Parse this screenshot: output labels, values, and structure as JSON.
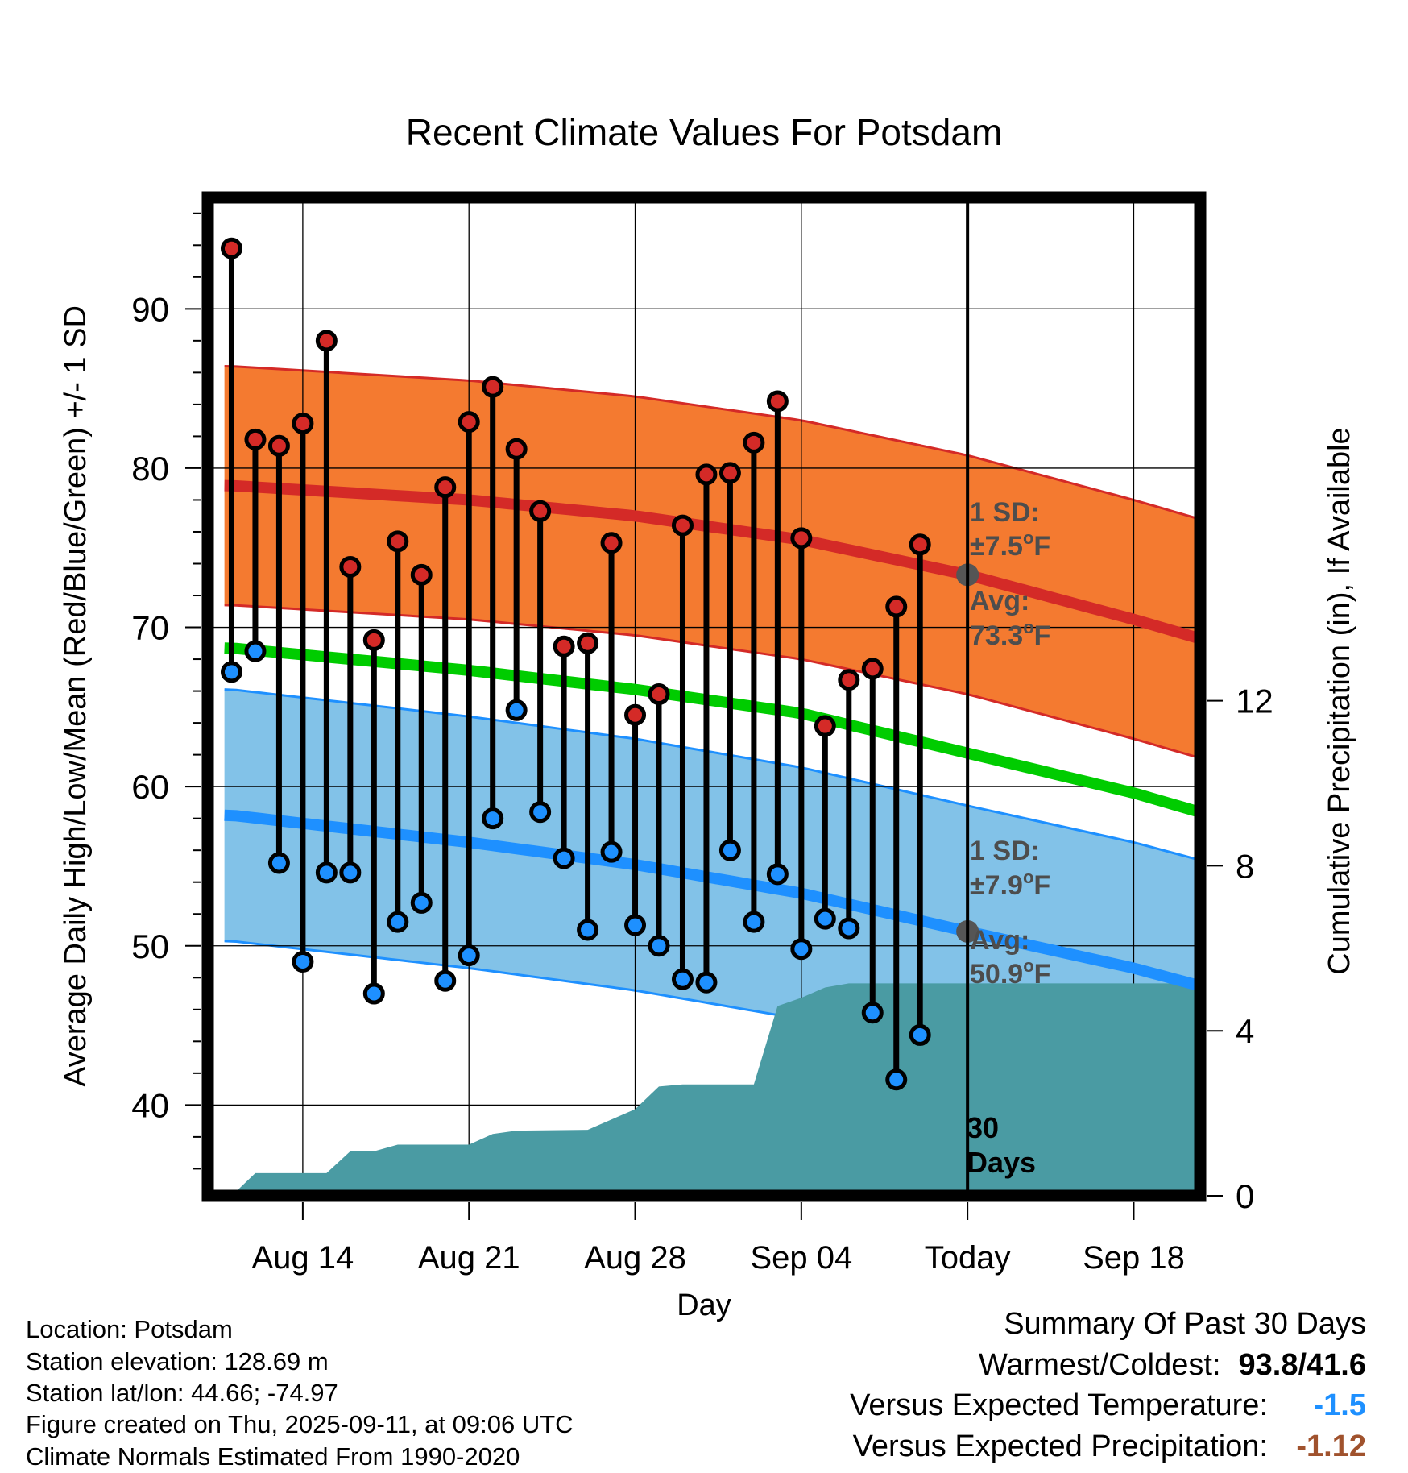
{
  "chart_data": {
    "type": "line",
    "title": "Recent Climate Values For Potsdam",
    "xlabel": "Day",
    "ylabel": "Average Daily High/Low/Mean (Red/Blue/Green) +/- 1 SD",
    "y2label": "Cumulative Precipitation (in), If Available",
    "x_tick_labels": [
      "Aug 14",
      "Aug 21",
      "Aug 28",
      "Sep 04",
      "Today",
      "Sep 18"
    ],
    "y_ticks": [
      40,
      50,
      60,
      70,
      80,
      90
    ],
    "y2_ticks": [
      0,
      4,
      8,
      12
    ],
    "ylim": [
      34.3,
      97
    ],
    "y2lim": [
      0,
      24.2
    ],
    "grid": true,
    "days": [
      "Aug 11",
      "Aug 12",
      "Aug 13",
      "Aug 14",
      "Aug 15",
      "Aug 16",
      "Aug 17",
      "Aug 18",
      "Aug 19",
      "Aug 20",
      "Aug 21",
      "Aug 22",
      "Aug 23",
      "Aug 24",
      "Aug 25",
      "Aug 26",
      "Aug 27",
      "Aug 28",
      "Aug 29",
      "Aug 30",
      "Aug 31",
      "Sep 01",
      "Sep 02",
      "Sep 03",
      "Sep 04",
      "Sep 05",
      "Sep 06",
      "Sep 07",
      "Sep 08",
      "Sep 09",
      "Sep 10",
      "Sep 11"
    ],
    "daily_highs": [
      {
        "date": "Aug 11",
        "value": 93.8
      },
      {
        "date": "Aug 12",
        "value": 81.8
      },
      {
        "date": "Aug 13",
        "value": 81.4
      },
      {
        "date": "Aug 14",
        "value": 82.8
      },
      {
        "date": "Aug 15",
        "value": 88.0
      },
      {
        "date": "Aug 16",
        "value": 73.8
      },
      {
        "date": "Aug 17",
        "value": 69.2
      },
      {
        "date": "Aug 18",
        "value": 75.4
      },
      {
        "date": "Aug 19",
        "value": 73.3
      },
      {
        "date": "Aug 20",
        "value": 78.8
      },
      {
        "date": "Aug 21",
        "value": 82.9
      },
      {
        "date": "Aug 22",
        "value": 85.1
      },
      {
        "date": "Aug 23",
        "value": 81.2
      },
      {
        "date": "Aug 24",
        "value": 77.3
      },
      {
        "date": "Aug 25",
        "value": 68.8
      },
      {
        "date": "Aug 26",
        "value": 69.0
      },
      {
        "date": "Aug 27",
        "value": 75.3
      },
      {
        "date": "Aug 28",
        "value": 64.5
      },
      {
        "date": "Aug 29",
        "value": 65.8
      },
      {
        "date": "Aug 30",
        "value": 76.4
      },
      {
        "date": "Aug 31",
        "value": 79.6
      },
      {
        "date": "Sep 01",
        "value": 79.7
      },
      {
        "date": "Sep 02",
        "value": 81.6
      },
      {
        "date": "Sep 03",
        "value": 84.2
      },
      {
        "date": "Sep 04",
        "value": 75.6
      },
      {
        "date": "Sep 05",
        "value": 63.8
      },
      {
        "date": "Sep 06",
        "value": 66.7
      },
      {
        "date": "Sep 07",
        "value": 67.4
      },
      {
        "date": "Sep 08",
        "value": 71.3
      },
      {
        "date": "Sep 09",
        "value": 75.2
      }
    ],
    "daily_lows": [
      {
        "date": "Aug 11",
        "value": 67.2
      },
      {
        "date": "Aug 12",
        "value": 68.5
      },
      {
        "date": "Aug 13",
        "value": 55.2
      },
      {
        "date": "Aug 14",
        "value": 49.0
      },
      {
        "date": "Aug 15",
        "value": 54.6
      },
      {
        "date": "Aug 16",
        "value": 54.6
      },
      {
        "date": "Aug 17",
        "value": 47.0
      },
      {
        "date": "Aug 18",
        "value": 51.5
      },
      {
        "date": "Aug 19",
        "value": 52.7
      },
      {
        "date": "Aug 20",
        "value": 47.8
      },
      {
        "date": "Aug 21",
        "value": 49.4
      },
      {
        "date": "Aug 22",
        "value": 58.0
      },
      {
        "date": "Aug 23",
        "value": 64.8
      },
      {
        "date": "Aug 24",
        "value": 58.4
      },
      {
        "date": "Aug 25",
        "value": 55.5
      },
      {
        "date": "Aug 26",
        "value": 51.0
      },
      {
        "date": "Aug 27",
        "value": 55.9
      },
      {
        "date": "Aug 28",
        "value": 51.3
      },
      {
        "date": "Aug 29",
        "value": 50.0
      },
      {
        "date": "Aug 30",
        "value": 47.9
      },
      {
        "date": "Aug 31",
        "value": 47.7
      },
      {
        "date": "Sep 01",
        "value": 56.0
      },
      {
        "date": "Sep 02",
        "value": 51.5
      },
      {
        "date": "Sep 03",
        "value": 54.5
      },
      {
        "date": "Sep 04",
        "value": 49.8
      },
      {
        "date": "Sep 05",
        "value": 51.7
      },
      {
        "date": "Sep 06",
        "value": 51.1
      },
      {
        "date": "Sep 07",
        "value": 45.8
      },
      {
        "date": "Sep 08",
        "value": 41.6
      },
      {
        "date": "Sep 09",
        "value": 44.4
      }
    ],
    "normal_high": [
      {
        "date": "Aug 11",
        "value": 78.9
      },
      {
        "date": "Aug 21",
        "value": 78.0
      },
      {
        "date": "Aug 28",
        "value": 77.0
      },
      {
        "date": "Sep 04",
        "value": 75.5
      },
      {
        "date": "Sep 11",
        "value": 73.3
      },
      {
        "date": "Sep 18",
        "value": 70.5
      },
      {
        "date": "Sep 21",
        "value": 69.2
      }
    ],
    "normal_high_sd": 7.5,
    "normal_low": [
      {
        "date": "Aug 11",
        "value": 58.2
      },
      {
        "date": "Aug 21",
        "value": 56.5
      },
      {
        "date": "Aug 28",
        "value": 55.1
      },
      {
        "date": "Sep 04",
        "value": 53.3
      },
      {
        "date": "Sep 11",
        "value": 50.9
      },
      {
        "date": "Sep 18",
        "value": 48.6
      },
      {
        "date": "Sep 21",
        "value": 47.4
      }
    ],
    "normal_low_sd": 7.9,
    "normal_mean": [
      {
        "date": "Aug 11",
        "value": 68.7
      },
      {
        "date": "Aug 21",
        "value": 67.3
      },
      {
        "date": "Aug 28",
        "value": 66.1
      },
      {
        "date": "Sep 04",
        "value": 64.6
      },
      {
        "date": "Sep 11",
        "value": 62.1
      },
      {
        "date": "Sep 18",
        "value": 59.6
      },
      {
        "date": "Sep 21",
        "value": 58.3
      }
    ],
    "cumulative_precipitation": [
      {
        "date": "Aug 11",
        "value": 0.0
      },
      {
        "date": "Aug 12",
        "value": 0.55
      },
      {
        "date": "Aug 15",
        "value": 0.55
      },
      {
        "date": "Aug 16",
        "value": 1.08
      },
      {
        "date": "Aug 17",
        "value": 1.08
      },
      {
        "date": "Aug 18",
        "value": 1.24
      },
      {
        "date": "Aug 21",
        "value": 1.24
      },
      {
        "date": "Aug 22",
        "value": 1.5
      },
      {
        "date": "Aug 23",
        "value": 1.58
      },
      {
        "date": "Aug 26",
        "value": 1.6
      },
      {
        "date": "Aug 28",
        "value": 2.1
      },
      {
        "date": "Aug 29",
        "value": 2.65
      },
      {
        "date": "Aug 30",
        "value": 2.7
      },
      {
        "date": "Sep 02",
        "value": 2.7
      },
      {
        "date": "Sep 03",
        "value": 4.6
      },
      {
        "date": "Sep 04",
        "value": 4.8
      },
      {
        "date": "Sep 05",
        "value": 5.05
      },
      {
        "date": "Sep 06",
        "value": 5.15
      },
      {
        "date": "Sep 21",
        "value": 5.15
      }
    ],
    "today": "Sep 11",
    "annotations": {
      "high_sd_label": "1 SD:",
      "high_sd_value": "±7.5",
      "high_avg_label": "Avg:",
      "high_avg_value": "73.3",
      "low_sd_label": "1 SD:",
      "low_sd_value": "±7.9",
      "low_avg_label": "Avg:",
      "low_avg_value": "50.9",
      "degree_symbol": "o",
      "unit": "F",
      "precip_days_line1": "30",
      "precip_days_line2": "Days"
    },
    "colors": {
      "high_band": "#f47a30",
      "high_line": "#d42a27",
      "low_band": "#82c2e8",
      "low_line": "#1e90ff",
      "mean_line": "#00cc00",
      "precip": "#4a9ba3",
      "high_marker": "#d42a27",
      "low_marker": "#1e90ff",
      "annotation": "#4d4d4d"
    }
  },
  "footer": {
    "location": "Location: Potsdam",
    "elevation": "Station elevation: 128.69 m",
    "latlon": "Station lat/lon: 44.66; -74.97",
    "created": "Figure created on Thu, 2025-09-11, at 09:06 UTC",
    "normals": "Climate Normals Estimated From 1990-2020"
  },
  "summary": {
    "title": "Summary Of Past 30 Days",
    "warmest_coldest_label": "Warmest/Coldest:",
    "warmest_coldest_value": "93.8/41.6",
    "temp_label": "Versus Expected Temperature:",
    "temp_value": "-1.5",
    "temp_color": "#1e90ff",
    "precip_label": "Versus Expected Precipitation:",
    "precip_value": "-1.12",
    "precip_color": "#a0522d"
  }
}
